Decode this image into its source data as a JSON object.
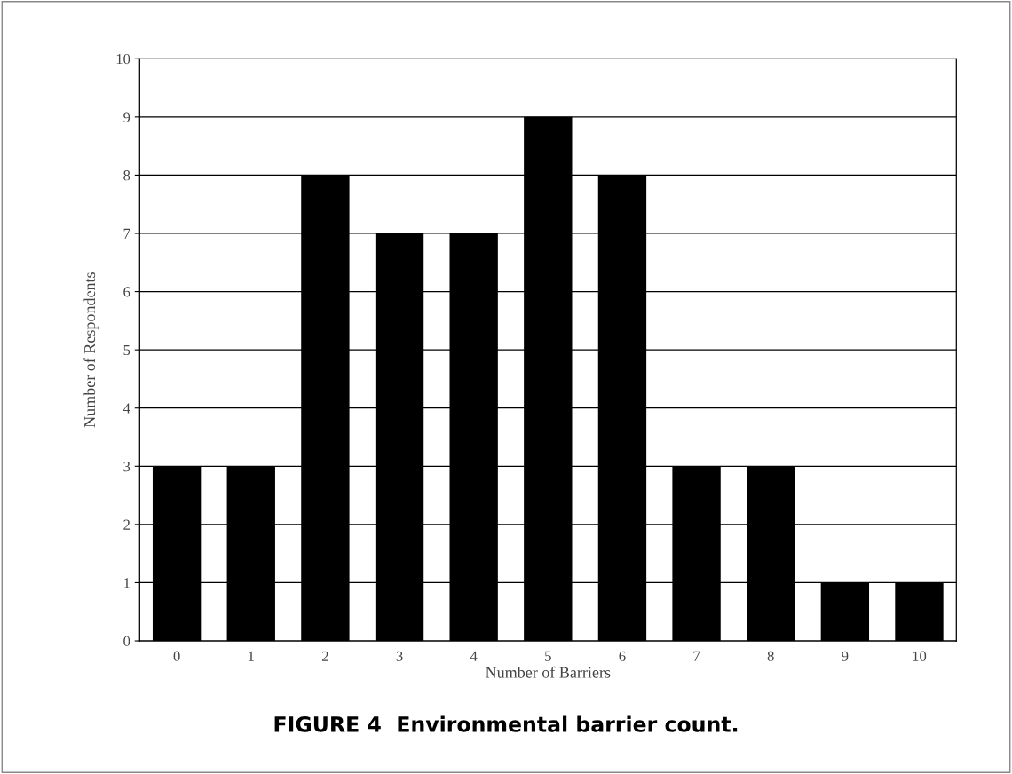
{
  "chart_data": {
    "type": "bar",
    "title": "FIGURE 4  Environmental barrier count.",
    "xlabel": "Number of Barriers",
    "ylabel": "Number of Respondents",
    "categories": [
      "0",
      "1",
      "2",
      "3",
      "4",
      "5",
      "6",
      "7",
      "8",
      "9",
      "10"
    ],
    "values": [
      3,
      3,
      8,
      7,
      7,
      9,
      8,
      3,
      3,
      1,
      1
    ],
    "color": "#000000",
    "ylim": [
      0,
      10
    ],
    "yticks": [
      0,
      1,
      2,
      3,
      4,
      5,
      6,
      7,
      8,
      9,
      10
    ],
    "grid": "y",
    "legend": false
  }
}
